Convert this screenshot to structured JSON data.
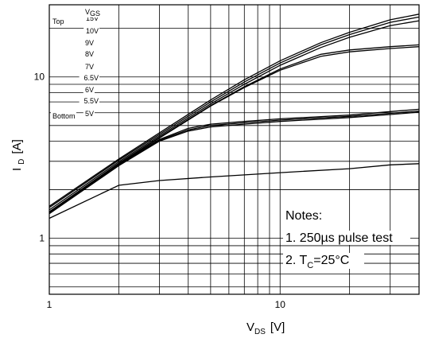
{
  "chart_data": {
    "type": "line",
    "x_scale": "log",
    "y_scale": "log",
    "xlim": [
      1,
      40
    ],
    "ylim": [
      0.45,
      28
    ],
    "x_ticks": [
      {
        "value": 1,
        "label": "1"
      },
      {
        "value": 10,
        "label": "10"
      }
    ],
    "y_ticks": [
      {
        "value": 1,
        "label": "1"
      },
      {
        "value": 10,
        "label": "10"
      }
    ],
    "xlabel": {
      "main": "V",
      "sub": "DS",
      "unit": "[V]"
    },
    "ylabel": {
      "main": "I",
      "sub": "D",
      "unit": "[A]"
    },
    "grid": true,
    "legend": {
      "header_left": "Top",
      "header_right": {
        "main": "V",
        "sub": "GS"
      },
      "bottom_word": "Bottom",
      "entries": [
        "15V",
        "10V",
        "9V",
        "8V",
        "7V",
        "6.5V",
        "6V",
        "5.5V",
        "5V"
      ]
    },
    "notes": {
      "title": "Notes:",
      "line1": "1. 250µs pulse test",
      "line2_prefix": "2. T",
      "line2_sub": "C",
      "line2_suffix": "=25°C"
    },
    "series": [
      {
        "x": [
          1,
          2,
          3,
          5,
          7,
          10,
          15,
          20,
          30,
          40
        ],
        "y": [
          1.58,
          3.1,
          4.5,
          7.2,
          9.6,
          12.6,
          16.3,
          18.9,
          22.6,
          24.5
        ]
      },
      {
        "x": [
          1,
          2,
          3,
          5,
          7,
          10,
          15,
          20,
          30,
          40
        ],
        "y": [
          1.55,
          3.05,
          4.4,
          7.0,
          9.3,
          12.2,
          15.8,
          18.3,
          21.8,
          23.5
        ]
      },
      {
        "x": [
          1,
          2,
          3,
          5,
          7,
          10,
          15,
          20,
          30,
          40
        ],
        "y": [
          1.5,
          2.98,
          4.3,
          6.8,
          9.0,
          11.8,
          15.2,
          17.6,
          20.8,
          22.3
        ]
      },
      {
        "x": [
          1,
          2,
          3,
          5,
          7,
          10,
          15,
          20,
          30,
          40
        ],
        "y": [
          1.46,
          2.92,
          4.22,
          6.65,
          8.7,
          11.2,
          13.8,
          14.7,
          15.4,
          15.8
        ]
      },
      {
        "x": [
          1,
          2,
          3,
          5,
          7,
          10,
          15,
          20,
          30,
          40
        ],
        "y": [
          1.45,
          2.9,
          4.18,
          6.6,
          8.6,
          11.0,
          13.4,
          14.3,
          15.0,
          15.4
        ]
      },
      {
        "x": [
          1,
          2,
          3,
          4,
          5,
          7,
          10,
          20,
          30,
          40
        ],
        "y": [
          1.46,
          2.88,
          4.1,
          4.8,
          5.1,
          5.3,
          5.5,
          5.8,
          6.1,
          6.3
        ]
      },
      {
        "x": [
          1,
          2,
          3,
          4,
          5,
          7,
          10,
          20,
          30,
          40
        ],
        "y": [
          1.44,
          2.85,
          4.05,
          4.7,
          5.0,
          5.2,
          5.4,
          5.7,
          5.95,
          6.15
        ]
      },
      {
        "x": [
          1,
          2,
          3,
          4,
          5,
          7,
          10,
          20,
          30,
          40
        ],
        "y": [
          1.42,
          2.82,
          4.0,
          4.62,
          4.9,
          5.1,
          5.3,
          5.6,
          5.85,
          6.05
        ]
      },
      {
        "x": [
          1,
          2,
          3,
          5,
          10,
          20,
          30,
          40
        ],
        "y": [
          1.33,
          2.13,
          2.28,
          2.4,
          2.55,
          2.7,
          2.85,
          2.9
        ]
      }
    ]
  }
}
